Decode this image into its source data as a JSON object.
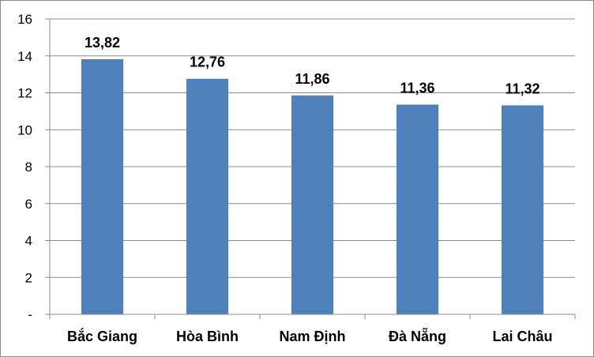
{
  "chart_data": {
    "type": "bar",
    "categories": [
      "Bắc Giang",
      "Hòa Bình",
      "Nam Định",
      "Đà Nẵng",
      "Lai Châu"
    ],
    "values": [
      13.82,
      12.76,
      11.86,
      11.36,
      11.32
    ],
    "value_labels": [
      "13,82",
      "12,76",
      "11,86",
      "11,36",
      "11,32"
    ],
    "ylim": [
      0,
      16
    ],
    "yticks": [
      0,
      2,
      4,
      6,
      8,
      10,
      12,
      14,
      16
    ],
    "ytick_labels": [
      "-",
      "2",
      "4",
      "6",
      "8",
      "10",
      "12",
      "14",
      "16"
    ],
    "grid": true,
    "legend": "none",
    "title": "",
    "xlabel": "",
    "ylabel": "",
    "colors": {
      "bar": "#4f81bd",
      "grid": "#8c8c8c",
      "axis": "#8c8c8c",
      "text": "#000000"
    }
  }
}
